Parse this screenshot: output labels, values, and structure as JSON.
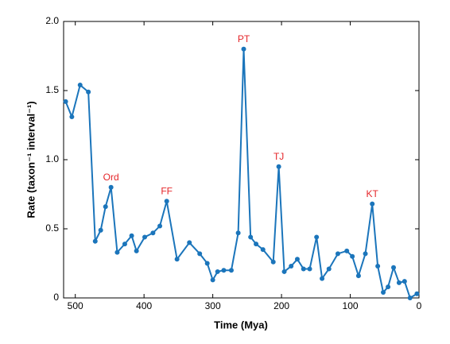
{
  "chart_data": {
    "type": "line",
    "xlabel": "Time (Mya)",
    "ylabel": "Rate (taxon⁻¹ interval⁻¹)",
    "x": [
      514,
      505,
      493,
      481,
      471,
      463,
      456,
      448,
      439,
      428,
      418,
      411,
      399,
      387,
      377,
      367,
      352,
      334,
      319,
      308,
      300,
      293,
      284,
      273,
      263,
      255,
      245,
      237,
      227,
      212,
      204,
      196,
      186,
      177,
      168,
      159,
      149,
      141,
      131,
      118,
      105,
      97,
      88,
      78,
      68,
      60,
      52,
      45,
      37,
      29,
      21,
      13,
      3
    ],
    "values": [
      1.42,
      1.31,
      1.54,
      1.49,
      0.41,
      0.49,
      0.66,
      0.8,
      0.33,
      0.39,
      0.45,
      0.34,
      0.44,
      0.47,
      0.52,
      0.7,
      0.28,
      0.4,
      0.32,
      0.25,
      0.13,
      0.19,
      0.2,
      0.2,
      0.47,
      1.8,
      0.44,
      0.39,
      0.35,
      0.26,
      0.95,
      0.19,
      0.23,
      0.28,
      0.21,
      0.21,
      0.44,
      0.14,
      0.21,
      0.32,
      0.34,
      0.3,
      0.16,
      0.32,
      0.68,
      0.23,
      0.04,
      0.08,
      0.22,
      0.11,
      0.12,
      0,
      0.03
    ],
    "color": "#1b75bb",
    "annotations": [
      {
        "text": "Ord",
        "x": 448,
        "y": 0.8
      },
      {
        "text": "FF",
        "x": 367,
        "y": 0.7
      },
      {
        "text": "PT",
        "x": 255,
        "y": 1.8
      },
      {
        "text": "TJ",
        "x": 204,
        "y": 0.95
      },
      {
        "text": "KT",
        "x": 68,
        "y": 0.68
      }
    ],
    "annotation_color": "#e5262a",
    "xlim": [
      517,
      0
    ],
    "ylim": [
      0,
      2
    ],
    "xticks": [
      500,
      400,
      300,
      200,
      100,
      0
    ],
    "yticks": [
      0,
      0.5,
      {
        "value": 1,
        "label": "1.0"
      },
      1.5,
      {
        "value": 2,
        "label": "2.0"
      }
    ]
  }
}
